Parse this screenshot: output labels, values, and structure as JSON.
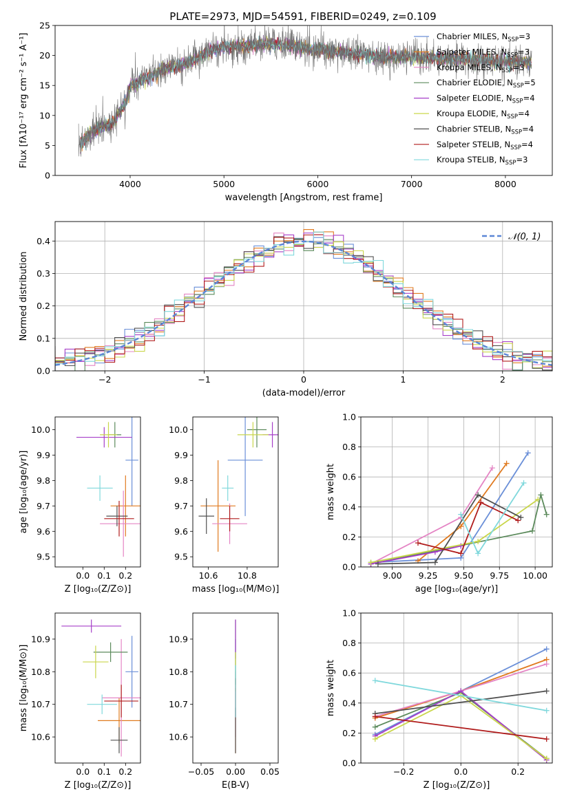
{
  "figure": {
    "title": "PLATE=2973, MJD=54591, FIBERID=0249, z=0.109"
  },
  "colors": [
    "#6a8fd8",
    "#e07a1f",
    "#e484c4",
    "#5b8a5b",
    "#a63fc8",
    "#c9d64a",
    "#505050",
    "#b01c1c",
    "#7fd8dc"
  ],
  "chart_data": [
    {
      "id": "spectrum",
      "type": "line",
      "title": "PLATE=2973, MJD=54591, FIBERID=0249, z=0.109",
      "xlabel": "wavelength [Angstrom, rest frame]",
      "ylabel": "Flux [fλ10⁻¹⁷ erg cm⁻² s⁻¹ A⁻¹]",
      "xlim": [
        3200,
        8500
      ],
      "ylim": [
        0,
        25
      ],
      "xticks": [
        4000,
        5000,
        6000,
        7000,
        8000
      ],
      "yticks": [
        0,
        5,
        10,
        15,
        20,
        25
      ],
      "grid": false,
      "legend_position": "right",
      "continuum": [
        [
          3450,
          5
        ],
        [
          3600,
          7.5
        ],
        [
          3800,
          8.5
        ],
        [
          3950,
          12
        ],
        [
          4000,
          15
        ],
        [
          4200,
          16.5
        ],
        [
          4400,
          18
        ],
        [
          4600,
          18.5
        ],
        [
          4800,
          20.5
        ],
        [
          5000,
          21.5
        ],
        [
          5200,
          21.5
        ],
        [
          5500,
          22
        ],
        [
          6000,
          21
        ],
        [
          6300,
          20.5
        ],
        [
          6600,
          19.8
        ],
        [
          7000,
          19.8
        ],
        [
          7400,
          19.5
        ],
        [
          7800,
          19.3
        ],
        [
          8280,
          18.8
        ]
      ],
      "series": [
        {
          "name": "Chabrier MILES, NSSP=3",
          "label_main": "Chabrier MILES, N",
          "label_sub": "SSP",
          "label_tail": "=3"
        },
        {
          "name": "Salpeter MILES, NSSP=3",
          "label_main": "Salpeter MILES, N",
          "label_sub": "SSP",
          "label_tail": "=3"
        },
        {
          "name": "Kroupa MILES, NSSP=3",
          "label_main": "Kroupa MILES, N",
          "label_sub": "SSP",
          "label_tail": "=3"
        },
        {
          "name": "Chabrier ELODIE, NSSP=5",
          "label_main": "Chabrier ELODIE, N",
          "label_sub": "SSP",
          "label_tail": "=5"
        },
        {
          "name": "Salpeter ELODIE, NSSP=4",
          "label_main": "Salpeter ELODIE, N",
          "label_sub": "SSP",
          "label_tail": "=4"
        },
        {
          "name": "Kroupa ELODIE, NSSP=4",
          "label_main": "Kroupa ELODIE, N",
          "label_sub": "SSP",
          "label_tail": "=4"
        },
        {
          "name": "Chabrier STELIB, NSSP=4",
          "label_main": "Chabrier STELIB, N",
          "label_sub": "SSP",
          "label_tail": "=4"
        },
        {
          "name": "Salpeter STELIB, NSSP=4",
          "label_main": "Salpeter STELIB, N",
          "label_sub": "SSP",
          "label_tail": "=4"
        },
        {
          "name": "Kroupa STELIB, NSSP=3",
          "label_main": "Kroupa STELIB, N",
          "label_sub": "SSP",
          "label_tail": "=3"
        }
      ]
    },
    {
      "id": "residuals",
      "type": "line",
      "xlabel": "(data-model)/error",
      "ylabel": "Normed distribution",
      "xlim": [
        -2.5,
        2.5
      ],
      "ylim": [
        0,
        0.46
      ],
      "xticks": [
        -2,
        -1,
        0,
        1,
        2
      ],
      "yticks": [
        0.0,
        0.1,
        0.2,
        0.3,
        0.4
      ],
      "grid": true,
      "legend_position": "top-right",
      "reference_curve": "𝒩(0, 1)",
      "bin_width": 0.1
    },
    {
      "id": "age_vs_Z",
      "type": "scatter",
      "xlabel": "Z [log₁₀(Z/Z⊙)]",
      "ylabel": "age  [log₁₀(age/yr)]",
      "xlim": [
        -0.13,
        0.27
      ],
      "ylim": [
        9.46,
        10.05
      ],
      "xticks": [
        0.0,
        0.1,
        0.2
      ],
      "yticks": [
        9.5,
        9.6,
        9.7,
        9.8,
        9.9,
        10.0
      ],
      "points": [
        {
          "x": 0.23,
          "xerr": 0.03,
          "y": 9.88,
          "yerr": 0.18
        },
        {
          "x": 0.2,
          "xerr": 0.07,
          "y": 9.7,
          "yerr": 0.12
        },
        {
          "x": 0.19,
          "xerr": 0.11,
          "y": 9.63,
          "yerr": 0.13
        },
        {
          "x": 0.15,
          "xerr": 0.03,
          "y": 9.98,
          "yerr": 0.05
        },
        {
          "x": 0.1,
          "xerr": 0.13,
          "y": 9.97,
          "yerr": 0.04
        },
        {
          "x": 0.12,
          "xerr": 0.04,
          "y": 9.98,
          "yerr": 0.05
        },
        {
          "x": 0.16,
          "xerr": 0.05,
          "y": 9.66,
          "yerr": 0.04
        },
        {
          "x": 0.17,
          "xerr": 0.07,
          "y": 9.65,
          "yerr": 0.07
        },
        {
          "x": 0.08,
          "xerr": 0.06,
          "y": 9.77,
          "yerr": 0.05
        }
      ]
    },
    {
      "id": "age_vs_mass",
      "type": "scatter",
      "xlabel": "mass [log₁₀(M/M⊙)]",
      "ylabel": "",
      "xlim": [
        10.52,
        10.96
      ],
      "ylim": [
        9.46,
        10.05
      ],
      "xticks": [
        10.6,
        10.8
      ],
      "yticks": [
        9.5,
        9.6,
        9.7,
        9.8,
        9.9,
        10.0
      ],
      "points": [
        {
          "x": 10.79,
          "xerr": 0.09,
          "y": 9.88,
          "yerr": 0.22
        },
        {
          "x": 10.65,
          "xerr": 0.09,
          "y": 9.7,
          "yerr": 0.18
        },
        {
          "x": 10.71,
          "xerr": 0.09,
          "y": 9.63,
          "yerr": 0.08
        },
        {
          "x": 10.85,
          "xerr": 0.05,
          "y": 10.0,
          "yerr": 0.07
        },
        {
          "x": 10.93,
          "xerr": 0.05,
          "y": 9.98,
          "yerr": 0.05
        },
        {
          "x": 10.83,
          "xerr": 0.08,
          "y": 9.98,
          "yerr": 0.05
        },
        {
          "x": 10.59,
          "xerr": 0.04,
          "y": 9.66,
          "yerr": 0.07
        },
        {
          "x": 10.71,
          "xerr": 0.05,
          "y": 9.65,
          "yerr": 0.05
        },
        {
          "x": 10.7,
          "xerr": 0.03,
          "y": 9.77,
          "yerr": 0.05
        }
      ]
    },
    {
      "id": "weight_vs_age",
      "type": "line",
      "xlabel": "age  [log₁₀(age/yr)]",
      "ylabel": "mass weight",
      "xlim": [
        8.78,
        10.12
      ],
      "ylim": [
        0.0,
        1.0
      ],
      "xticks": [
        9.0,
        9.25,
        9.5,
        9.75,
        10.0
      ],
      "yticks": [
        0.0,
        0.2,
        0.4,
        0.6,
        0.8,
        1.0
      ],
      "grid": true,
      "series": [
        {
          "x": [
            8.85,
            9.48,
            9.95
          ],
          "y": [
            0.03,
            0.06,
            0.76
          ]
        },
        {
          "x": [
            9.18,
            9.48,
            9.8
          ],
          "y": [
            0.04,
            0.27,
            0.69
          ]
        },
        {
          "x": [
            8.85,
            9.48,
            9.7
          ],
          "y": [
            0.02,
            0.33,
            0.66
          ]
        },
        {
          "x": [
            8.85,
            9.98,
            10.04,
            10.08
          ],
          "y": [
            0.02,
            0.24,
            0.48,
            0.35
          ]
        },
        {
          "x": [
            8.85,
            9.3,
            9.48
          ],
          "y": [
            0.02,
            0.1,
            0.14
          ]
        },
        {
          "x": [
            8.85,
            9.6,
            10.02
          ],
          "y": [
            0.03,
            0.17,
            0.45
          ]
        },
        {
          "x": [
            8.9,
            9.3,
            9.6,
            9.9
          ],
          "y": [
            0.02,
            0.03,
            0.48,
            0.33
          ]
        },
        {
          "x": [
            9.18,
            9.48,
            9.62,
            9.88
          ],
          "y": [
            0.16,
            0.09,
            0.43,
            0.31
          ]
        },
        {
          "x": [
            9.48,
            9.6,
            9.92
          ],
          "y": [
            0.35,
            0.09,
            0.56
          ]
        }
      ]
    },
    {
      "id": "mass_vs_Z",
      "type": "scatter",
      "xlabel": "Z [log₁₀(Z/Z⊙)]",
      "ylabel": "mass [log₁₀(M/M⊙)]",
      "xlim": [
        -0.13,
        0.27
      ],
      "ylim": [
        10.52,
        10.98
      ],
      "xticks": [
        0.0,
        0.1,
        0.2
      ],
      "yticks": [
        10.6,
        10.7,
        10.8,
        10.9
      ],
      "points": [
        {
          "x": 0.23,
          "xerr": 0.03,
          "y": 10.8,
          "yerr": 0.11
        },
        {
          "x": 0.17,
          "xerr": 0.1,
          "y": 10.65,
          "yerr": 0.07
        },
        {
          "x": 0.18,
          "xerr": 0.09,
          "y": 10.72,
          "yerr": 0.18
        },
        {
          "x": 0.13,
          "xerr": 0.08,
          "y": 10.86,
          "yerr": 0.03
        },
        {
          "x": 0.04,
          "xerr": 0.14,
          "y": 10.94,
          "yerr": 0.02
        },
        {
          "x": 0.06,
          "xerr": 0.06,
          "y": 10.83,
          "yerr": 0.05
        },
        {
          "x": 0.17,
          "xerr": 0.04,
          "y": 10.59,
          "yerr": 0.04
        },
        {
          "x": 0.18,
          "xerr": 0.08,
          "y": 10.71,
          "yerr": 0.05
        },
        {
          "x": 0.09,
          "xerr": 0.07,
          "y": 10.7,
          "yerr": 0.03
        }
      ]
    },
    {
      "id": "mass_vs_EBV",
      "type": "scatter",
      "xlabel": "E(B-V)",
      "ylabel": "",
      "xlim": [
        -0.062,
        0.062
      ],
      "ylim": [
        10.52,
        10.98
      ],
      "xticks": [
        -0.05,
        0.0,
        0.05
      ],
      "yticks": [
        10.6,
        10.7,
        10.8,
        10.9
      ],
      "points": [
        {
          "x": 0.0,
          "xerr": 0.0,
          "y": 10.78,
          "yerr": 0.12
        },
        {
          "x": 0.0,
          "xerr": 0.0,
          "y": 10.65,
          "yerr": 0.1
        },
        {
          "x": 0.0,
          "xerr": 0.0,
          "y": 10.7,
          "yerr": 0.1
        },
        {
          "x": 0.0,
          "xerr": 0.0,
          "y": 10.86,
          "yerr": 0.1
        },
        {
          "x": 0.0,
          "xerr": 0.0,
          "y": 10.9,
          "yerr": 0.06
        },
        {
          "x": 0.0,
          "xerr": 0.0,
          "y": 10.8,
          "yerr": 0.06
        },
        {
          "x": 0.0,
          "xerr": 0.0,
          "y": 10.62,
          "yerr": 0.07
        },
        {
          "x": 0.0,
          "xerr": 0.0,
          "y": 10.72,
          "yerr": 0.06
        },
        {
          "x": 0.0,
          "xerr": 0.0,
          "y": 10.74,
          "yerr": 0.08
        }
      ]
    },
    {
      "id": "weight_vs_Z",
      "type": "line",
      "xlabel": "Z [log₁₀(Z/Z⊙)]",
      "ylabel": "mass weight",
      "xlim": [
        -0.35,
        0.32
      ],
      "ylim": [
        0.0,
        1.0
      ],
      "xticks": [
        -0.2,
        0.0,
        0.2
      ],
      "yticks": [
        0.0,
        0.2,
        0.4,
        0.6,
        0.8,
        1.0
      ],
      "grid": true,
      "series": [
        {
          "x": [
            -0.3,
            0.0,
            0.3
          ],
          "y": [
            0.19,
            0.48,
            0.76
          ]
        },
        {
          "x": [
            -0.3,
            0.0,
            0.3
          ],
          "y": [
            0.3,
            0.48,
            0.69
          ]
        },
        {
          "x": [
            -0.3,
            0.0,
            0.3
          ],
          "y": [
            0.31,
            0.48,
            0.66
          ]
        },
        {
          "x": [
            -0.3,
            0.0,
            0.3
          ],
          "y": [
            0.24,
            0.47,
            0.03
          ]
        },
        {
          "x": [
            -0.3,
            0.0,
            0.3
          ],
          "y": [
            0.18,
            0.48,
            0.02
          ]
        },
        {
          "x": [
            -0.3,
            0.0,
            0.3
          ],
          "y": [
            0.16,
            0.45,
            0.03
          ]
        },
        {
          "x": [
            -0.3,
            0.3
          ],
          "y": [
            0.33,
            0.48
          ]
        },
        {
          "x": [
            -0.3,
            0.3
          ],
          "y": [
            0.31,
            0.16
          ]
        },
        {
          "x": [
            -0.3,
            0.3
          ],
          "y": [
            0.55,
            0.35
          ]
        }
      ]
    }
  ]
}
